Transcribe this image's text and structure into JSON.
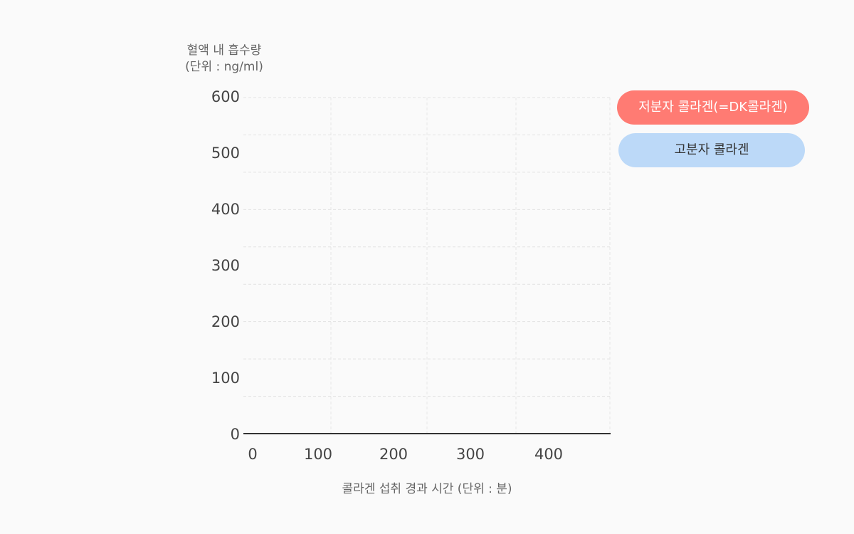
{
  "chart_data": {
    "type": "line",
    "ylabel": [
      "혈액 내 흡수량",
      "(단위 : ng/ml)"
    ],
    "xlabel": "콜라겐 섭취 경과 시간 (단위 : 분)",
    "y_ticks": [
      "600",
      "500",
      "400",
      "300",
      "200",
      "100",
      "0"
    ],
    "x_ticks": [
      "0",
      "100",
      "200",
      "300",
      "400"
    ],
    "ylim": [
      0,
      600
    ],
    "xlim": [
      0,
      480
    ],
    "grid": true,
    "legend_placement": "right",
    "series": [
      {
        "name": "저분자 콜라겐(=DK콜라겐)",
        "color": "#ff7b73",
        "values": []
      },
      {
        "name": "고분자 콜라겐",
        "color": "#bcd9f8",
        "values": []
      }
    ]
  }
}
